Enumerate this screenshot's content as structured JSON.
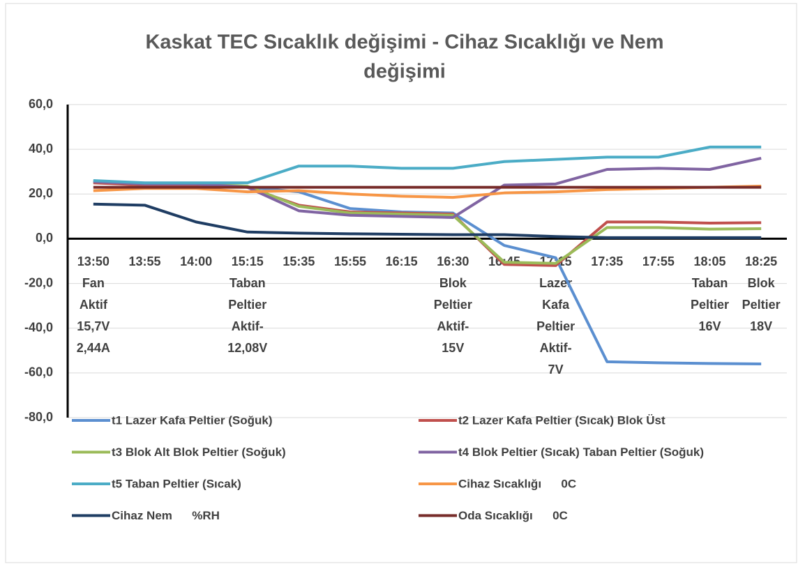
{
  "chart_data": {
    "type": "line",
    "title": [
      "Kaskat TEC Sıcaklık değişimi - Cihaz Sıcaklığı ve Nem",
      "değişimi"
    ],
    "categories": [
      [
        "13:50",
        "Fan",
        "Aktif",
        "15,7V",
        "2,44A"
      ],
      [
        "13:55"
      ],
      [
        "14:00"
      ],
      [
        "15:15",
        "Taban",
        "Peltier",
        "Aktif-",
        "12,08V"
      ],
      [
        "15:35"
      ],
      [
        "15:55"
      ],
      [
        "16:15"
      ],
      [
        "16:30",
        "Blok",
        "Peltier",
        "Aktif-",
        "15V"
      ],
      [
        "16:45"
      ],
      [
        "17:15",
        "Lazer",
        "Kafa",
        "Peltier",
        "Aktif-",
        "7V"
      ],
      [
        "17:35"
      ],
      [
        "17:55"
      ],
      [
        "18:05",
        "Taban",
        "Peltier",
        "16V"
      ],
      [
        "18:25",
        "Blok",
        "Peltier",
        "18V"
      ]
    ],
    "series": [
      {
        "name": "t1 Lazer Kafa Peltier (Soğuk)",
        "color": "#5b8fd0",
        "values": [
          25.5,
          24.5,
          24.5,
          23,
          21,
          13.5,
          12,
          11.5,
          -3,
          -8.5,
          -55,
          -55.5,
          -55.8,
          -56
        ]
      },
      {
        "name": "t2 Lazer Kafa Peltier (Sıcak) Blok Üst",
        "color": "#c0504d",
        "values": [
          25,
          24,
          24,
          23,
          15,
          12,
          11.5,
          11,
          -11.5,
          -12,
          7.5,
          7.5,
          7,
          7.2
        ]
      },
      {
        "name": "t3 Blok Alt Blok Peltier (Soğuk)",
        "color": "#9bbb59",
        "values": [
          25.5,
          24.5,
          24.5,
          23.5,
          14.5,
          11.5,
          11,
          10.5,
          -10.5,
          -11,
          5,
          5,
          4.3,
          4.5
        ]
      },
      {
        "name": "t4 Blok Peltier (Sıcak) Taban Peltier (Soğuk)",
        "color": "#8064a2",
        "values": [
          25.5,
          24.5,
          24.5,
          23,
          12.5,
          10.5,
          10,
          9.5,
          24,
          24.5,
          31,
          31.5,
          31,
          36
        ]
      },
      {
        "name": "t5 Taban Peltier (Sıcak)",
        "color": "#4bacc6",
        "values": [
          26,
          25,
          25,
          25,
          32.5,
          32.5,
          31.5,
          31.5,
          34.5,
          35.5,
          36.5,
          36.5,
          41,
          41
        ]
      },
      {
        "name": "Cihaz Sıcaklığı      0C",
        "color": "#f79646",
        "values": [
          21.5,
          22.5,
          22.5,
          21,
          21.5,
          20,
          19,
          18.5,
          20.5,
          21,
          22,
          22.5,
          23,
          23.5
        ]
      },
      {
        "name": "Cihaz Nem      %RH",
        "color": "#1f3d63",
        "values": [
          15.5,
          15,
          7.5,
          3,
          2.5,
          2.2,
          2,
          1.8,
          1.8,
          1,
          0.5,
          0.5,
          0.5,
          0.5
        ]
      },
      {
        "name": "Oda Sıcaklığı      0C",
        "color": "#772c2a",
        "values": [
          23,
          23,
          23,
          23,
          23,
          23,
          23,
          23,
          23,
          23,
          23,
          23,
          23,
          23
        ]
      }
    ],
    "ylim": [
      -80,
      60
    ],
    "yticks": [
      {
        "value": -80,
        "label": "-80,0"
      },
      {
        "value": -60,
        "label": "-60,0"
      },
      {
        "value": -40,
        "label": "-40,0"
      },
      {
        "value": -20,
        "label": "-20,0"
      },
      {
        "value": 0,
        "label": "0,0"
      },
      {
        "value": 20,
        "label": "20,0"
      },
      {
        "value": 40,
        "label": "40,0"
      },
      {
        "value": 60,
        "label": "60,0"
      }
    ],
    "grid": true
  }
}
